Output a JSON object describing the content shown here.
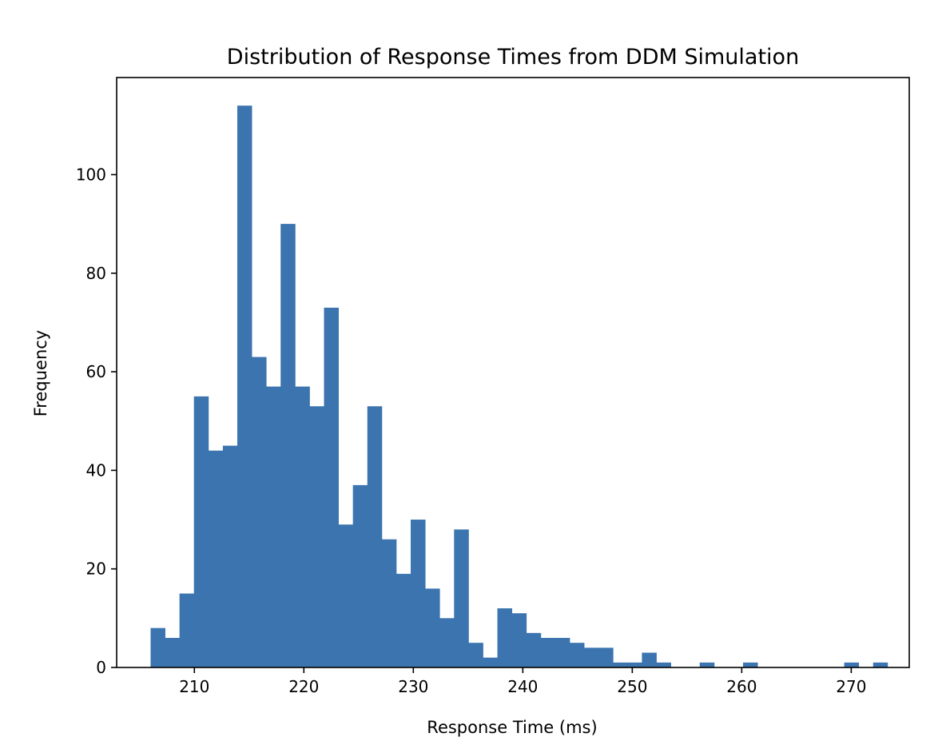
{
  "chart_data": {
    "type": "bar",
    "title": "Distribution of Response Times from DDM Simulation",
    "xlabel": "Response Time (ms)",
    "ylabel": "Frequency",
    "xlim": [
      202.9,
      275.3
    ],
    "ylim": [
      0,
      119.7
    ],
    "xticks": [
      210,
      220,
      230,
      240,
      250,
      260,
      270
    ],
    "yticks": [
      0,
      20,
      40,
      60,
      80,
      100
    ],
    "bar_color": "#3b74ae",
    "grid": false,
    "legend": "none",
    "bin_start": 206.0,
    "bin_width": 1.32,
    "values": [
      8,
      6,
      15,
      55,
      44,
      45,
      114,
      63,
      57,
      90,
      57,
      53,
      73,
      29,
      37,
      53,
      26,
      19,
      30,
      16,
      10,
      28,
      5,
      2,
      12,
      11,
      7,
      6,
      6,
      5,
      4,
      4,
      1,
      1,
      3,
      1,
      0,
      0,
      1,
      0,
      0,
      1,
      0,
      0,
      0,
      0,
      0,
      0,
      1,
      0,
      1
    ]
  }
}
